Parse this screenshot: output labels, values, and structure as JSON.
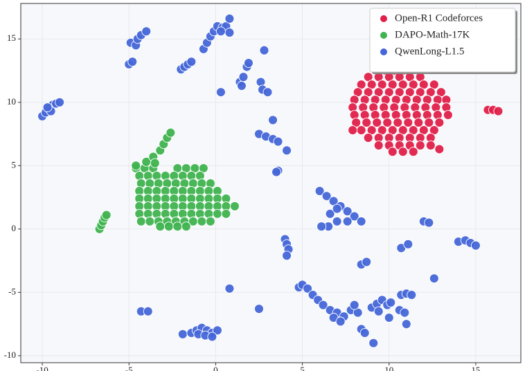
{
  "chart_data": {
    "type": "scatter",
    "legend": "upper right",
    "grid": true,
    "xlim": [
      -11.24,
      17.6
    ],
    "ylim": [
      -10.55,
      17.8
    ],
    "xticks": [
      -10,
      -5,
      0,
      5,
      10,
      15
    ],
    "yticks": [
      -10,
      -5,
      0,
      5,
      10,
      15
    ],
    "series": [
      {
        "name": "Open-R1 Codeforces",
        "color": "#e0204a",
        "x": [
          9.8,
          10.3,
          10.8,
          11.2,
          8.8,
          9.4,
          10,
          10.6,
          11.2,
          11.8,
          8.4,
          9,
          9.6,
          10.2,
          10.8,
          11.4,
          12,
          12.6,
          8.2,
          8.8,
          9.4,
          10,
          10.6,
          11.2,
          11.8,
          12.4,
          13,
          8,
          8.6,
          9.2,
          9.8,
          10.4,
          11,
          11.6,
          12.2,
          12.8,
          13.3,
          7.9,
          8.5,
          9.1,
          9.7,
          10.3,
          10.9,
          11.5,
          12.1,
          12.7,
          13.3,
          8,
          8.6,
          9.2,
          9.8,
          10.4,
          11,
          11.6,
          12.2,
          12.8,
          13.4,
          8.1,
          8.7,
          9.3,
          9.9,
          10.5,
          11.1,
          11.7,
          12.3,
          12.9,
          8.4,
          9,
          9.6,
          10.2,
          10.8,
          11.4,
          12,
          12.6,
          8.8,
          9.4,
          10,
          10.6,
          11.2,
          11.8,
          12.4,
          9.4,
          10,
          10.6,
          11.2,
          11.8,
          12.4,
          10.2,
          10.8,
          11.4,
          15.7,
          16,
          16.3,
          12.9,
          7.9
        ],
        "values": [
          12.5,
          12.5,
          12.5,
          12.5,
          12,
          12,
          12,
          12,
          12,
          12,
          11.4,
          11.4,
          11.4,
          11.4,
          11.4,
          11.4,
          11.4,
          11.4,
          10.8,
          10.8,
          10.8,
          10.8,
          10.8,
          10.8,
          10.8,
          10.8,
          10.8,
          10.2,
          10.2,
          10.2,
          10.2,
          10.2,
          10.2,
          10.2,
          10.2,
          10.2,
          10.2,
          9.6,
          9.6,
          9.6,
          9.6,
          9.6,
          9.6,
          9.6,
          9.6,
          9.6,
          9.6,
          9,
          9,
          9,
          9,
          9,
          9,
          9,
          9,
          9,
          9,
          8.4,
          8.4,
          8.4,
          8.4,
          8.4,
          8.4,
          8.4,
          8.4,
          8.4,
          7.8,
          7.8,
          7.8,
          7.8,
          7.8,
          7.8,
          7.8,
          7.8,
          7.2,
          7.2,
          7.2,
          7.2,
          7.2,
          7.2,
          7.2,
          6.6,
          6.6,
          6.6,
          6.6,
          6.6,
          6.6,
          6.1,
          6.1,
          6.1,
          9.4,
          9.4,
          9.3,
          6.3,
          7.8
        ]
      },
      {
        "name": "DAPO-Math-17K",
        "color": "#3fb34f",
        "x": [
          -4.6,
          -4.1,
          -3.6,
          -2.2,
          -1.7,
          -1.2,
          -0.7,
          -4.4,
          -3.9,
          -3.4,
          -2.9,
          -2.4,
          -1.9,
          -1.4,
          -0.9,
          -4.3,
          -3.8,
          -3.3,
          -2.8,
          -2.3,
          -1.8,
          -1.3,
          -0.8,
          -0.3,
          -4.4,
          -3.9,
          -3.4,
          -2.9,
          -2.4,
          -1.9,
          -1.4,
          -0.9,
          -0.4,
          0.1,
          -4.4,
          -3.9,
          -3.4,
          -2.9,
          -2.4,
          -1.9,
          -1.4,
          -0.9,
          -0.4,
          0.1,
          0.6,
          -4.4,
          -3.9,
          -3.4,
          -2.9,
          -2.4,
          -1.9,
          -1.4,
          -0.9,
          -0.4,
          0.1,
          0.6,
          1.1,
          -4.4,
          -3.9,
          -3.4,
          -2.9,
          -2.4,
          -1.9,
          -1.4,
          -0.9,
          -0.4,
          0.1,
          0.6,
          -4.3,
          -3.8,
          -3.3,
          -2.8,
          -2.3,
          -1.8,
          -1.3,
          -0.8,
          -0.3,
          -3.2,
          -2.7,
          -2.2,
          -1.7,
          -4,
          -3.6,
          -3.2,
          -3,
          -2.8,
          -2.6,
          -3.5,
          -4.6,
          -6.7,
          -6.6,
          -6.5,
          -6.4,
          -6.3
        ],
        "values": [
          4.8,
          4.8,
          4.8,
          4.8,
          4.8,
          4.8,
          4.8,
          4.2,
          4.2,
          4.2,
          4.2,
          4.2,
          4.2,
          4.2,
          4.2,
          3.6,
          3.6,
          3.6,
          3.6,
          3.6,
          3.6,
          3.6,
          3.6,
          3.6,
          3,
          3,
          3,
          3,
          3,
          3,
          3,
          3,
          3,
          3,
          2.4,
          2.4,
          2.4,
          2.4,
          2.4,
          2.4,
          2.4,
          2.4,
          2.4,
          2.4,
          2.4,
          1.8,
          1.8,
          1.8,
          1.8,
          1.8,
          1.8,
          1.8,
          1.8,
          1.8,
          1.8,
          1.8,
          1.8,
          1.2,
          1.2,
          1.2,
          1.2,
          1.2,
          1.2,
          1.2,
          1.2,
          1.2,
          1.2,
          1.2,
          0.6,
          0.6,
          0.6,
          0.6,
          0.6,
          0.6,
          0.6,
          0.6,
          0.6,
          0.2,
          0.2,
          0.2,
          0.2,
          5.3,
          5.7,
          6.2,
          6.7,
          7.2,
          7.6,
          5.2,
          5,
          0,
          0.3,
          0.6,
          0.9,
          1.1
        ]
      },
      {
        "name": "QwenLong-L1.5",
        "color": "#4466d8",
        "x": [
          -10,
          -9.8,
          -9.6,
          -9.4,
          -9.2,
          -9,
          -9.5,
          -9.7,
          -5,
          -4.8,
          -4.9,
          -4.6,
          -4.5,
          -4.3,
          -4,
          -2,
          -1.8,
          -1.6,
          -1.4,
          -0.7,
          -0.5,
          -0.3,
          -0.1,
          0.1,
          0.4,
          0.6,
          0.8,
          0.8,
          0.3,
          0.3,
          1.4,
          1.6,
          1.8,
          1.9,
          1.5,
          2.8,
          2.6,
          2.7,
          3,
          3.3,
          2.5,
          2.9,
          3.3,
          3.6,
          4.1,
          3.6,
          3.5,
          -1.9,
          -1.4,
          -1.1,
          -0.8,
          -0.5,
          -0.2,
          0.1,
          -1,
          -0.6,
          -0.2,
          -4.3,
          -3.9,
          0.8,
          2.5,
          4,
          4.1,
          4.2,
          4.1,
          6,
          6.4,
          6.8,
          7.2,
          7.6,
          8,
          8.4,
          6.6,
          7,
          7.6,
          6.5,
          6.1,
          7,
          4.8,
          5,
          5.3,
          5.6,
          5.9,
          6.2,
          6.6,
          7,
          7.4,
          7.8,
          8.2,
          6.8,
          7.2,
          8.4,
          8.6,
          9.1,
          8,
          9,
          9.3,
          9.6,
          9.9,
          10.1,
          9.4,
          10.6,
          10.9,
          11,
          10.7,
          11,
          11.3,
          10,
          10.7,
          11.1,
          12,
          12.3,
          12.6,
          14,
          14.4,
          14.7,
          15,
          8.4,
          8.7
        ],
        "values": [
          8.9,
          9.2,
          9.5,
          9.8,
          9.9,
          10,
          9.3,
          9.6,
          13,
          13.2,
          14.7,
          14.5,
          15,
          15.3,
          15.6,
          12.6,
          12.8,
          13,
          13.2,
          14.2,
          14.7,
          15.2,
          15.6,
          16,
          15.9,
          16,
          15.5,
          16.6,
          15.6,
          10.8,
          11.6,
          12,
          12.8,
          13.1,
          11.3,
          14.1,
          11.6,
          11,
          10.8,
          8.6,
          7.5,
          7.3,
          7.1,
          6.9,
          6.2,
          4.6,
          4.5,
          -8.3,
          -8.2,
          -8,
          -7.8,
          -8,
          -8.2,
          -8,
          -8.3,
          -8.4,
          -8.5,
          -6.5,
          -6.5,
          -4.7,
          -6.3,
          -0.8,
          -1.2,
          -1.6,
          -2.1,
          3,
          2.6,
          2.2,
          1.8,
          1.4,
          1,
          0.6,
          1.2,
          0.6,
          0.6,
          0.2,
          0.2,
          1.6,
          -4.6,
          -4.4,
          -4.7,
          -5.2,
          -5.6,
          -6,
          -6.4,
          -6.6,
          -6.9,
          -6.4,
          -6.6,
          -7,
          -7.3,
          -7.9,
          -8.2,
          -9,
          -6,
          -6.2,
          -5.9,
          -5.6,
          -6,
          -5.8,
          -6.5,
          -6.4,
          -6.6,
          -7.5,
          -5.2,
          -5.1,
          -5.2,
          -7,
          -1.5,
          -1.2,
          0.6,
          0.5,
          -3.9,
          -1,
          -0.9,
          -1.1,
          -1.3,
          -2.8,
          -2.6
        ]
      }
    ]
  }
}
